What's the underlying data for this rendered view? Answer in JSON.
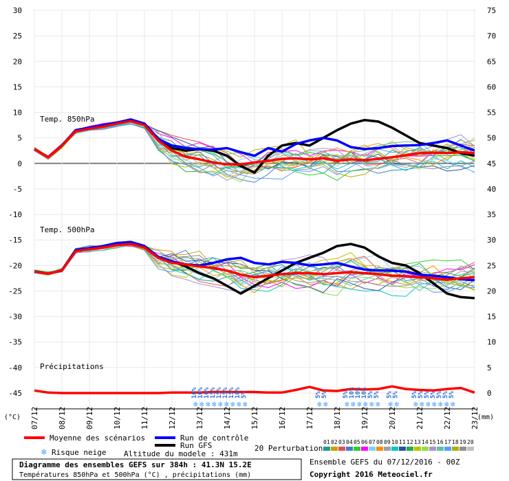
{
  "chart_data": {
    "type": "line",
    "title": "Diagramme des ensembles GEFS sur 384h : 41.3N 15.2E",
    "subtitle": "Températures 850hPa et 500hPa (°C) , précipitations (mm)",
    "left_axis": {
      "unit": "(°C)",
      "range": [
        -45,
        30
      ],
      "ticks": [
        30,
        25,
        20,
        15,
        10,
        5,
        0,
        -5,
        -10,
        -15,
        -20,
        -25,
        -30,
        -35,
        -40,
        -45
      ]
    },
    "right_axis": {
      "unit": "(mm)",
      "range": [
        0,
        75
      ],
      "ticks": [
        75,
        70,
        65,
        60,
        55,
        50,
        45,
        40,
        35,
        30,
        25,
        20,
        15,
        10,
        5,
        0
      ]
    },
    "x_ticks": [
      "07/12",
      "08/12",
      "09/12",
      "10/12",
      "11/12",
      "12/12",
      "13/12",
      "14/12",
      "15/12",
      "16/12",
      "17/12",
      "18/12",
      "19/12",
      "20/12",
      "21/12",
      "22/12",
      "23/12"
    ],
    "x_hours": [
      0,
      384
    ],
    "panels": {
      "t850": "Temp. 850hPa",
      "t500": "Temp. 500hPa",
      "precip": "Précipitations"
    },
    "series": [
      {
        "name": "Moyenne des scénarios",
        "panel": "t850",
        "color": "#ff0000",
        "x": [
          0,
          12,
          24,
          36,
          48,
          60,
          72,
          84,
          96,
          108,
          120,
          132,
          144,
          156,
          168,
          180,
          192,
          204,
          216,
          228,
          240,
          252,
          264,
          276,
          288,
          300,
          312,
          324,
          336,
          348,
          360,
          372,
          384
        ],
        "values": [
          2.8,
          1.2,
          3.5,
          6.3,
          6.8,
          7.2,
          7.8,
          8.3,
          7.5,
          4.5,
          2.5,
          1.3,
          0.8,
          0.2,
          -0.2,
          -0.2,
          0.2,
          0.5,
          0.9,
          1.0,
          0.8,
          1.0,
          0.5,
          0.8,
          0.6,
          0.9,
          1.2,
          1.6,
          2.0,
          2.1,
          2.0,
          2.2,
          2.0
        ]
      },
      {
        "name": "Run de contrôle",
        "panel": "t850",
        "color": "#0000ff",
        "x": [
          0,
          12,
          24,
          36,
          48,
          60,
          72,
          84,
          96,
          108,
          120,
          132,
          144,
          156,
          168,
          180,
          192,
          204,
          216,
          228,
          240,
          252,
          264,
          276,
          288,
          300,
          312,
          324,
          336,
          348,
          360,
          372,
          384
        ],
        "values": [
          2.8,
          1.2,
          3.5,
          6.5,
          7.0,
          7.5,
          8.0,
          8.6,
          7.8,
          4.8,
          3.5,
          3.0,
          2.8,
          2.7,
          3.0,
          2.2,
          1.5,
          3.0,
          2.3,
          3.8,
          4.5,
          5.0,
          4.5,
          3.2,
          2.8,
          3.0,
          3.4,
          3.5,
          3.6,
          4.0,
          4.5,
          3.5,
          2.5
        ]
      },
      {
        "name": "Run GFS",
        "panel": "t850",
        "color": "#000000",
        "x": [
          0,
          12,
          24,
          36,
          48,
          60,
          72,
          84,
          96,
          108,
          120,
          132,
          144,
          156,
          168,
          180,
          192,
          204,
          216,
          228,
          240,
          252,
          264,
          276,
          288,
          300,
          312,
          324,
          336,
          348,
          360,
          372,
          384
        ],
        "values": [
          2.8,
          1.2,
          3.5,
          6.5,
          7.0,
          7.5,
          8.0,
          8.6,
          7.8,
          4.8,
          3.0,
          2.5,
          2.8,
          2.5,
          1.5,
          -0.5,
          -1.8,
          1.5,
          3.5,
          4.0,
          3.5,
          5.0,
          6.5,
          7.8,
          8.5,
          8.2,
          7.0,
          5.5,
          4.0,
          3.5,
          3.0,
          2.0,
          1.5
        ]
      },
      {
        "name": "Moyenne des scénarios",
        "panel": "t500",
        "color": "#ff0000",
        "x": [
          0,
          12,
          24,
          36,
          48,
          60,
          72,
          84,
          96,
          108,
          120,
          132,
          144,
          156,
          168,
          180,
          192,
          204,
          216,
          228,
          240,
          252,
          264,
          276,
          288,
          300,
          312,
          324,
          336,
          348,
          360,
          372,
          384
        ],
        "values": [
          -21.2,
          -21.6,
          -21.0,
          -17.2,
          -16.8,
          -16.5,
          -16.0,
          -15.8,
          -16.5,
          -18.5,
          -19.5,
          -19.8,
          -20.2,
          -20.5,
          -21.0,
          -21.8,
          -22.3,
          -22.0,
          -21.7,
          -21.5,
          -21.5,
          -21.7,
          -21.5,
          -21.3,
          -21.5,
          -21.7,
          -22.0,
          -22.1,
          -22.3,
          -22.5,
          -22.8,
          -22.5,
          -22.3
        ]
      },
      {
        "name": "Run de contrôle",
        "panel": "t500",
        "color": "#0000ff",
        "x": [
          0,
          12,
          24,
          36,
          48,
          60,
          72,
          84,
          96,
          108,
          120,
          132,
          144,
          156,
          168,
          180,
          192,
          204,
          216,
          228,
          240,
          252,
          264,
          276,
          288,
          300,
          312,
          324,
          336,
          348,
          360,
          372,
          384
        ],
        "values": [
          -21.2,
          -21.6,
          -21.0,
          -17.0,
          -16.6,
          -16.2,
          -15.6,
          -15.4,
          -16.2,
          -18.3,
          -19.2,
          -19.8,
          -20.0,
          -19.5,
          -18.8,
          -18.5,
          -19.5,
          -19.8,
          -19.3,
          -19.5,
          -20.0,
          -19.8,
          -19.5,
          -20.2,
          -20.8,
          -21.0,
          -21.0,
          -21.2,
          -21.8,
          -22.0,
          -22.3,
          -22.7,
          -22.9
        ]
      },
      {
        "name": "Run GFS",
        "panel": "t500",
        "color": "#000000",
        "x": [
          0,
          12,
          24,
          36,
          48,
          60,
          72,
          84,
          96,
          108,
          120,
          132,
          144,
          156,
          168,
          180,
          192,
          204,
          216,
          228,
          240,
          252,
          264,
          276,
          288,
          300,
          312,
          324,
          336,
          348,
          360,
          372,
          384
        ],
        "values": [
          -21.2,
          -21.6,
          -21.0,
          -17.0,
          -16.6,
          -16.2,
          -15.6,
          -15.4,
          -16.2,
          -18.3,
          -19.2,
          -20.2,
          -21.5,
          -22.5,
          -24.0,
          -25.5,
          -24.0,
          -22.5,
          -21.0,
          -19.5,
          -18.5,
          -17.5,
          -16.2,
          -15.8,
          -16.5,
          -18.2,
          -19.5,
          -20.0,
          -21.5,
          -23.5,
          -25.5,
          -26.2,
          -26.4
        ]
      },
      {
        "name": "Moyenne des scénarios (précipitations)",
        "panel": "precip",
        "color": "#ff0000",
        "x": [
          0,
          12,
          24,
          36,
          48,
          60,
          72,
          84,
          96,
          108,
          120,
          132,
          144,
          156,
          168,
          180,
          192,
          204,
          216,
          228,
          240,
          252,
          264,
          276,
          288,
          300,
          312,
          324,
          336,
          348,
          360,
          372,
          384
        ],
        "values": [
          0.5,
          0.1,
          0,
          0,
          0,
          0,
          0,
          0,
          0,
          0,
          0.1,
          0.1,
          0.1,
          0.2,
          0.2,
          0.2,
          0.2,
          0.1,
          0.1,
          0.6,
          1.2,
          0.5,
          0.4,
          0.8,
          0.7,
          0.8,
          1.3,
          0.8,
          0.6,
          0.5,
          0.8,
          1.0,
          0.1
        ]
      }
    ],
    "snow_risk": [
      {
        "hour": 150,
        "percents": [
          "10%",
          "10%",
          "10%",
          "15%",
          "15%",
          "15%",
          "15%",
          "10%",
          "5%"
        ]
      },
      {
        "hour": 258,
        "percents": [
          "5%",
          "5%"
        ]
      },
      {
        "hour": 282,
        "percents": [
          "5%",
          "10%",
          "10%",
          "10%",
          "5%",
          "5%"
        ]
      },
      {
        "hour": 320,
        "percents": [
          "5%",
          "5%"
        ]
      },
      {
        "hour": 342,
        "percents": [
          "5%",
          "5%",
          "5%",
          "5%",
          "5%",
          "5%",
          "5%"
        ]
      }
    ]
  },
  "legend": {
    "mean": "Moyenne des scénarios",
    "control": "Run de contrôle",
    "gfs": "Run GFS",
    "perturbations": "20 Perturbations",
    "snow": "Risque neige",
    "altitude": "Altitude du modele : 431m",
    "pert_numbers": [
      "01",
      "02",
      "03",
      "04",
      "05",
      "06",
      "07",
      "08",
      "09",
      "10",
      "11",
      "12",
      "13",
      "14",
      "15",
      "16",
      "17",
      "18",
      "19",
      "20"
    ],
    "pert_colors": [
      "#1f9b8e",
      "#c8a000",
      "#e05050",
      "#3f7fd0",
      "#2cd02c",
      "#ff00ff",
      "#7fd0ff",
      "#ff8c00",
      "#a0a0a0",
      "#00c8c8",
      "#3050a0",
      "#20b040",
      "#c0c000",
      "#90e040",
      "#b090d0",
      "#60c0a0",
      "#50a0ff",
      "#b0b000",
      "#909090",
      "#c0c0c0"
    ]
  },
  "footer": {
    "title": "Diagramme des ensembles GEFS sur 384h : 41.3N 15.2E",
    "subtitle": "Températures 850hPa et 500hPa (°C) , précipitations (mm)",
    "ensemble": "Ensemble GEFS du 07/12/2016 - 00Z",
    "copyright": "Copyright 2016 Meteociel.fr"
  }
}
